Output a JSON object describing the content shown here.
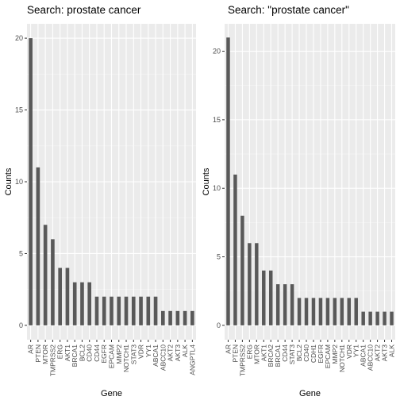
{
  "chart_data": [
    {
      "type": "bar",
      "title": "Search: prostate cancer",
      "xlabel": "Gene",
      "ylabel": "Counts",
      "ylim": [
        0,
        21
      ],
      "yticks": [
        0,
        5,
        10,
        15,
        20
      ],
      "grid": true,
      "bar_color": "#595959",
      "panel_color": "#ebebeb",
      "categories": [
        "AR",
        "PTEN",
        "MTOR",
        "TMPRSS2",
        "ERG",
        "AKT1",
        "BRCA1",
        "BCL2",
        "CD40",
        "CD44",
        "EGFR",
        "EPCAM",
        "MMP2",
        "NOTCH1",
        "STAT3",
        "VDR",
        "YY1",
        "ABCA1",
        "ABCC10",
        "AKT2",
        "AKT3",
        "ALK",
        "ANGPTL4"
      ],
      "values": [
        20,
        11,
        7,
        6,
        4,
        4,
        3,
        3,
        3,
        2,
        2,
        2,
        2,
        2,
        2,
        2,
        2,
        2,
        1,
        1,
        1,
        1,
        1
      ]
    },
    {
      "type": "bar",
      "title": "Search: \"prostate cancer\"",
      "xlabel": "Gene",
      "ylabel": "Counts",
      "ylim": [
        0,
        22
      ],
      "yticks": [
        0,
        5,
        10,
        15,
        20
      ],
      "grid": true,
      "bar_color": "#595959",
      "panel_color": "#ebebeb",
      "categories": [
        "AR",
        "PTEN",
        "TMPRSS2",
        "ERG",
        "MTOR",
        "AKT1",
        "BRCA2",
        "BRCA1",
        "CD44",
        "STAT3",
        "BCL2",
        "CD40",
        "CDH1",
        "EGFR",
        "EPCAM",
        "MMP2",
        "NOTCH1",
        "VDR",
        "YY1",
        "ABCA1",
        "ABCC10",
        "AKT2",
        "AKT3",
        "ALK"
      ],
      "values": [
        21,
        11,
        8,
        6,
        6,
        4,
        4,
        3,
        3,
        3,
        2,
        2,
        2,
        2,
        2,
        2,
        2,
        2,
        2,
        1,
        1,
        1,
        1,
        1
      ]
    }
  ]
}
